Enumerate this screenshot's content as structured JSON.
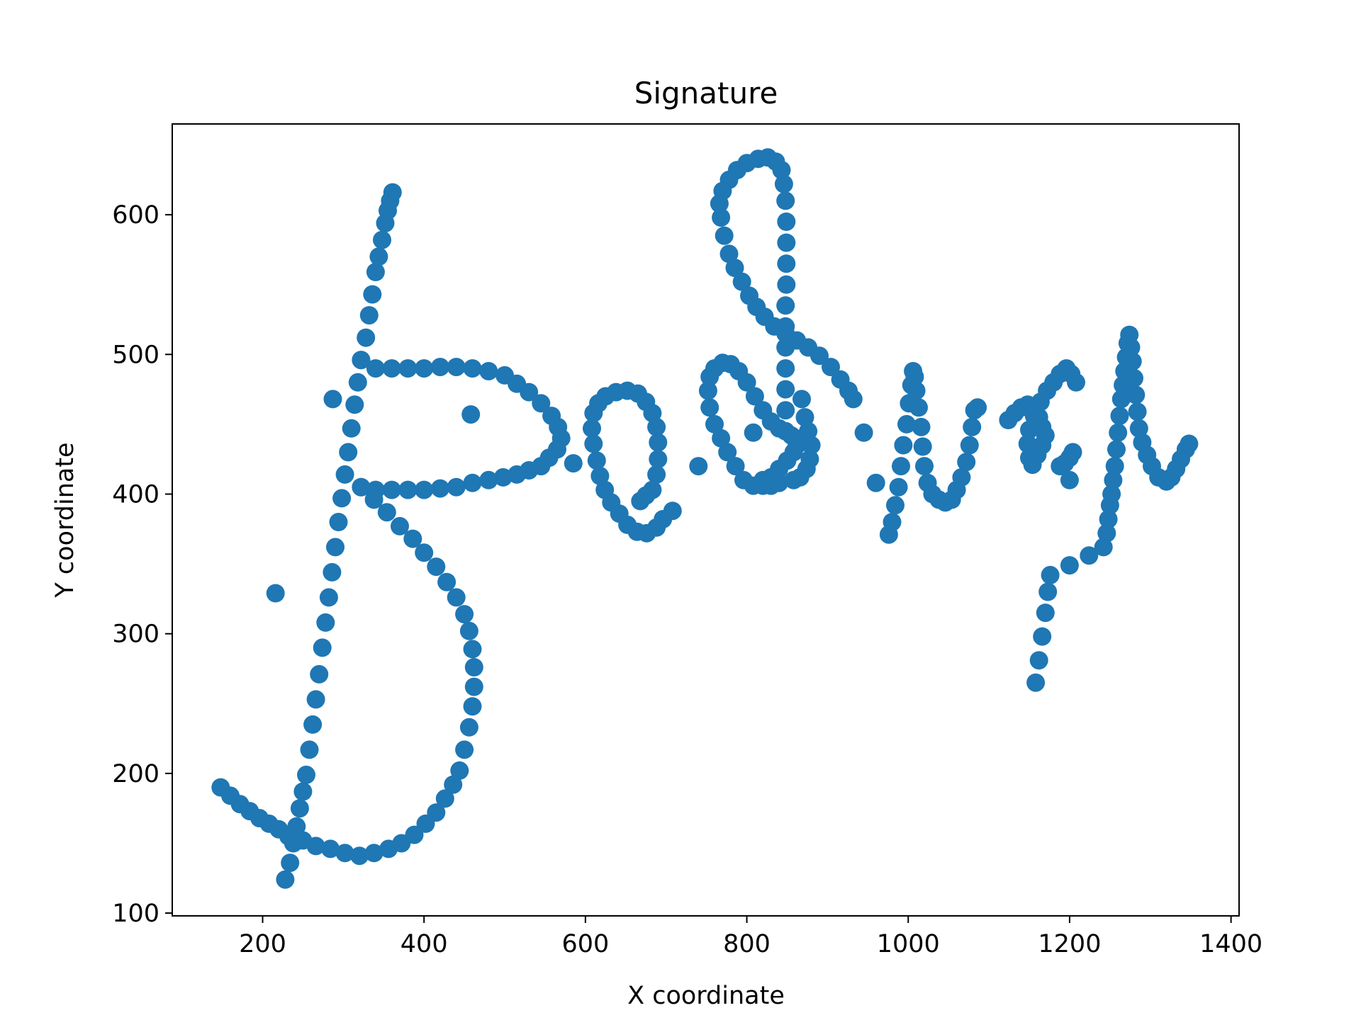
{
  "chart_data": {
    "type": "scatter",
    "title": "Signature",
    "xlabel": "X coordinate",
    "ylabel": "Y coordinate",
    "xlim": [
      88,
      1410
    ],
    "ylim": [
      98,
      665
    ],
    "xticks": [
      200,
      400,
      600,
      800,
      1000,
      1200,
      1400
    ],
    "yticks": [
      100,
      200,
      300,
      400,
      500,
      600
    ],
    "grid": false,
    "legend": "none",
    "color": "#1f77b4",
    "series": [
      {
        "points": [
          [
            148,
            190
          ],
          [
            160,
            184
          ],
          [
            172,
            178
          ],
          [
            184,
            173
          ],
          [
            196,
            168
          ],
          [
            208,
            164
          ],
          [
            220,
            160
          ],
          [
            232,
            155
          ],
          [
            240,
            152
          ],
          [
            228,
            124
          ],
          [
            234,
            136
          ],
          [
            238,
            150
          ],
          [
            242,
            162
          ],
          [
            246,
            175
          ],
          [
            250,
            187
          ],
          [
            254,
            199
          ],
          [
            258,
            217
          ],
          [
            262,
            235
          ],
          [
            266,
            253
          ],
          [
            270,
            271
          ],
          [
            274,
            290
          ],
          [
            278,
            308
          ],
          [
            282,
            326
          ],
          [
            286,
            344
          ],
          [
            290,
            362
          ],
          [
            294,
            380
          ],
          [
            298,
            397
          ],
          [
            302,
            414
          ],
          [
            306,
            430
          ],
          [
            310,
            447
          ],
          [
            314,
            464
          ],
          [
            318,
            480
          ],
          [
            322,
            496
          ],
          [
            328,
            512
          ],
          [
            332,
            528
          ],
          [
            336,
            543
          ],
          [
            340,
            559
          ],
          [
            344,
            570
          ],
          [
            348,
            582
          ],
          [
            352,
            594
          ],
          [
            355,
            603
          ],
          [
            358,
            610
          ],
          [
            361,
            616
          ],
          [
            322,
            496
          ],
          [
            340,
            490
          ],
          [
            360,
            490
          ],
          [
            380,
            490
          ],
          [
            400,
            490
          ],
          [
            420,
            491
          ],
          [
            440,
            491
          ],
          [
            460,
            490
          ],
          [
            480,
            488
          ],
          [
            500,
            485
          ],
          [
            515,
            479
          ],
          [
            530,
            473
          ],
          [
            545,
            465
          ],
          [
            558,
            456
          ],
          [
            566,
            448
          ],
          [
            570,
            440
          ],
          [
            565,
            432
          ],
          [
            555,
            426
          ],
          [
            545,
            420
          ],
          [
            530,
            417
          ],
          [
            515,
            414
          ],
          [
            498,
            412
          ],
          [
            480,
            410
          ],
          [
            460,
            408
          ],
          [
            440,
            405
          ],
          [
            420,
            404
          ],
          [
            400,
            403
          ],
          [
            380,
            403
          ],
          [
            360,
            403
          ],
          [
            340,
            403
          ],
          [
            322,
            405
          ],
          [
            322,
            405
          ],
          [
            338,
            396
          ],
          [
            354,
            387
          ],
          [
            370,
            377
          ],
          [
            386,
            368
          ],
          [
            400,
            358
          ],
          [
            415,
            348
          ],
          [
            428,
            337
          ],
          [
            440,
            326
          ],
          [
            450,
            314
          ],
          [
            456,
            302
          ],
          [
            460,
            289
          ],
          [
            462,
            276
          ],
          [
            462,
            262
          ],
          [
            460,
            248
          ],
          [
            456,
            233
          ],
          [
            450,
            217
          ],
          [
            444,
            202
          ],
          [
            436,
            192
          ],
          [
            426,
            182
          ],
          [
            415,
            172
          ],
          [
            402,
            164
          ],
          [
            388,
            156
          ],
          [
            372,
            150
          ],
          [
            356,
            146
          ],
          [
            338,
            143
          ],
          [
            320,
            141
          ],
          [
            302,
            143
          ],
          [
            284,
            146
          ],
          [
            266,
            148
          ],
          [
            250,
            152
          ],
          [
            216,
            329
          ],
          [
            287,
            468
          ],
          [
            458,
            457
          ],
          [
            585,
            422
          ],
          [
            740,
            420
          ],
          [
            808,
            444
          ],
          [
            945,
            444
          ],
          [
            960,
            408
          ],
          [
            1200,
            410
          ],
          [
            1224,
            356
          ],
          [
            1200,
            349
          ],
          [
            708,
            388
          ],
          [
            696,
            382
          ],
          [
            688,
            376
          ],
          [
            676,
            372
          ],
          [
            664,
            373
          ],
          [
            652,
            378
          ],
          [
            642,
            386
          ],
          [
            632,
            394
          ],
          [
            624,
            403
          ],
          [
            618,
            413
          ],
          [
            614,
            424
          ],
          [
            610,
            436
          ],
          [
            608,
            447
          ],
          [
            610,
            458
          ],
          [
            616,
            465
          ],
          [
            625,
            470
          ],
          [
            638,
            473
          ],
          [
            652,
            474
          ],
          [
            665,
            472
          ],
          [
            675,
            466
          ],
          [
            683,
            458
          ],
          [
            688,
            448
          ],
          [
            690,
            437
          ],
          [
            690,
            425
          ],
          [
            688,
            414
          ],
          [
            683,
            403
          ],
          [
            675,
            399
          ],
          [
            668,
            395
          ],
          [
            840,
            408
          ],
          [
            830,
            406
          ],
          [
            820,
            406
          ],
          [
            808,
            406
          ],
          [
            796,
            410
          ],
          [
            786,
            420
          ],
          [
            776,
            430
          ],
          [
            768,
            440
          ],
          [
            760,
            450
          ],
          [
            754,
            462
          ],
          [
            752,
            474
          ],
          [
            754,
            484
          ],
          [
            760,
            490
          ],
          [
            770,
            494
          ],
          [
            780,
            493
          ],
          [
            790,
            488
          ],
          [
            800,
            480
          ],
          [
            810,
            470
          ],
          [
            820,
            460
          ],
          [
            830,
            452
          ],
          [
            840,
            447
          ],
          [
            848,
            445
          ],
          [
            855,
            442
          ],
          [
            860,
            440
          ],
          [
            862,
            435
          ],
          [
            858,
            430
          ],
          [
            850,
            424
          ],
          [
            840,
            418
          ],
          [
            830,
            412
          ],
          [
            820,
            410
          ],
          [
            848,
            445
          ],
          [
            848,
            460
          ],
          [
            848,
            475
          ],
          [
            848,
            490
          ],
          [
            848,
            505
          ],
          [
            848,
            520
          ],
          [
            848,
            535
          ],
          [
            849,
            550
          ],
          [
            849,
            565
          ],
          [
            849,
            580
          ],
          [
            849,
            595
          ],
          [
            848,
            610
          ],
          [
            846,
            622
          ],
          [
            843,
            632
          ],
          [
            836,
            638
          ],
          [
            826,
            641
          ],
          [
            814,
            640
          ],
          [
            800,
            637
          ],
          [
            788,
            632
          ],
          [
            778,
            625
          ],
          [
            770,
            617
          ],
          [
            766,
            608
          ],
          [
            768,
            598
          ],
          [
            772,
            585
          ],
          [
            778,
            572
          ],
          [
            785,
            562
          ],
          [
            794,
            552
          ],
          [
            803,
            542
          ],
          [
            812,
            534
          ],
          [
            822,
            527
          ],
          [
            834,
            520
          ],
          [
            848,
            515
          ],
          [
            862,
            510
          ],
          [
            876,
            505
          ],
          [
            890,
            499
          ],
          [
            904,
            491
          ],
          [
            916,
            482
          ],
          [
            926,
            474
          ],
          [
            932,
            468
          ],
          [
            868,
            468
          ],
          [
            872,
            455
          ],
          [
            876,
            445
          ],
          [
            880,
            435
          ],
          [
            878,
            425
          ],
          [
            874,
            418
          ],
          [
            866,
            412
          ],
          [
            858,
            410
          ],
          [
            976,
            371
          ],
          [
            980,
            380
          ],
          [
            984,
            392
          ],
          [
            988,
            405
          ],
          [
            991,
            420
          ],
          [
            994,
            435
          ],
          [
            998,
            450
          ],
          [
            1001,
            465
          ],
          [
            1004,
            478
          ],
          [
            1006,
            488
          ],
          [
            1008,
            484
          ],
          [
            1010,
            474
          ],
          [
            1013,
            462
          ],
          [
            1016,
            448
          ],
          [
            1018,
            434
          ],
          [
            1020,
            420
          ],
          [
            1024,
            408
          ],
          [
            1030,
            400
          ],
          [
            1038,
            396
          ],
          [
            1046,
            394
          ],
          [
            1054,
            396
          ],
          [
            1060,
            403
          ],
          [
            1066,
            412
          ],
          [
            1072,
            423
          ],
          [
            1076,
            435
          ],
          [
            1079,
            448
          ],
          [
            1082,
            460
          ],
          [
            1086,
            462
          ],
          [
            1124,
            453
          ],
          [
            1132,
            458
          ],
          [
            1140,
            462
          ],
          [
            1148,
            464
          ],
          [
            1156,
            462
          ],
          [
            1162,
            455
          ],
          [
            1166,
            448
          ],
          [
            1170,
            442
          ],
          [
            1166,
            435
          ],
          [
            1160,
            428
          ],
          [
            1154,
            421
          ],
          [
            1150,
            426
          ],
          [
            1148,
            436
          ],
          [
            1150,
            446
          ],
          [
            1156,
            456
          ],
          [
            1164,
            466
          ],
          [
            1172,
            474
          ],
          [
            1180,
            480
          ],
          [
            1188,
            486
          ],
          [
            1196,
            490
          ],
          [
            1202,
            486
          ],
          [
            1208,
            480
          ],
          [
            1204,
            430
          ],
          [
            1200,
            426
          ],
          [
            1194,
            422
          ],
          [
            1188,
            420
          ],
          [
            1158,
            265
          ],
          [
            1162,
            281
          ],
          [
            1166,
            298
          ],
          [
            1170,
            315
          ],
          [
            1173,
            330
          ],
          [
            1176,
            342
          ],
          [
            1242,
            362
          ],
          [
            1246,
            372
          ],
          [
            1248,
            382
          ],
          [
            1250,
            392
          ],
          [
            1252,
            400
          ],
          [
            1254,
            410
          ],
          [
            1256,
            420
          ],
          [
            1258,
            432
          ],
          [
            1260,
            444
          ],
          [
            1262,
            456
          ],
          [
            1264,
            468
          ],
          [
            1266,
            478
          ],
          [
            1268,
            488
          ],
          [
            1270,
            498
          ],
          [
            1272,
            508
          ],
          [
            1274,
            514
          ],
          [
            1276,
            505
          ],
          [
            1278,
            495
          ],
          [
            1280,
            483
          ],
          [
            1282,
            471
          ],
          [
            1284,
            459
          ],
          [
            1286,
            447
          ],
          [
            1290,
            437
          ],
          [
            1296,
            428
          ],
          [
            1302,
            420
          ],
          [
            1310,
            412
          ],
          [
            1320,
            409
          ],
          [
            1326,
            412
          ],
          [
            1332,
            418
          ],
          [
            1338,
            425
          ],
          [
            1344,
            432
          ],
          [
            1348,
            436
          ]
        ]
      }
    ]
  }
}
